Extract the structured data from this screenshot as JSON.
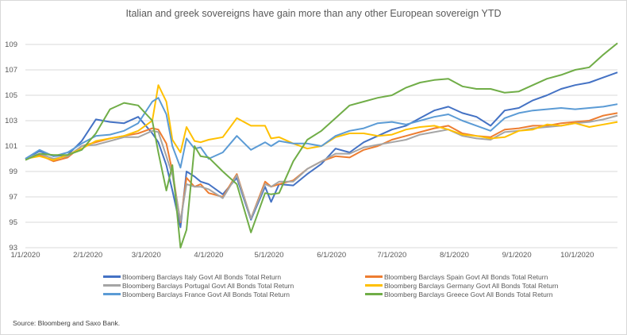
{
  "chart_data": {
    "type": "line",
    "title": "Italian and greek sovereigns have gain more than any other European sovereign YTD",
    "xlabel": "",
    "ylabel": "",
    "ylim": [
      93,
      109
    ],
    "yticks": [
      "93",
      "95",
      "97",
      "99",
      "101",
      "103",
      "105",
      "107",
      "109"
    ],
    "xticks": [
      "1/1/2020",
      "2/1/2020",
      "3/1/2020",
      "4/1/2020",
      "5/1/2020",
      "6/1/2020",
      "7/1/2020",
      "8/1/2020",
      "9/1/2020",
      "10/1/2020"
    ],
    "grid": true,
    "legend_position": "bottom",
    "x": [
      0,
      7,
      14,
      21,
      28,
      35,
      42,
      49,
      56,
      63,
      66,
      70,
      73,
      77,
      80,
      84,
      87,
      91,
      98,
      105,
      112,
      119,
      122,
      126,
      133,
      140,
      147,
      154,
      161,
      168,
      175,
      182,
      189,
      196,
      203,
      210,
      217,
      224,
      231,
      238,
      245,
      252,
      259,
      266,
      273,
      280,
      287,
      294
    ],
    "x_unit": "days since 1/1/2020",
    "series": [
      {
        "name": "Bloomberg Barclays Italy Govt All Bonds Total Return",
        "color": "#4472c4",
        "values": [
          100,
          100.6,
          100.2,
          100.3,
          101.4,
          103.1,
          102.9,
          102.8,
          103.3,
          102.0,
          101.3,
          99.5,
          97.5,
          94.6,
          99.0,
          98.6,
          98.2,
          98.0,
          97.2,
          98.5,
          95.2,
          97.8,
          96.6,
          98.0,
          97.9,
          98.8,
          99.6,
          100.8,
          100.5,
          101.3,
          101.8,
          102.3,
          102.6,
          103.2,
          103.8,
          104.1,
          103.6,
          103.3,
          102.6,
          103.8,
          104.0,
          104.6,
          105.0,
          105.5,
          105.8,
          106.0,
          106.4,
          106.8
        ]
      },
      {
        "name": "Bloomberg Barclays Spain Govt All Bonds Total Return",
        "color": "#ed7d31",
        "values": [
          100,
          100.3,
          99.8,
          100.1,
          101.0,
          101.3,
          101.6,
          101.8,
          102.0,
          102.4,
          102.3,
          101.2,
          99.0,
          95.0,
          98.5,
          97.8,
          98.0,
          97.3,
          97.0,
          98.8,
          95.3,
          98.2,
          97.8,
          98.0,
          98.3,
          99.2,
          99.8,
          100.2,
          100.1,
          100.7,
          101.0,
          101.5,
          101.8,
          102.1,
          102.4,
          102.6,
          102.0,
          101.8,
          101.7,
          102.3,
          102.4,
          102.6,
          102.6,
          102.8,
          102.9,
          103.0,
          103.4,
          103.6
        ]
      },
      {
        "name": "Bloomberg Barclays Portugal Govt All Bonds Total Return",
        "color": "#a5a5a5",
        "values": [
          100,
          100.4,
          100.0,
          100.2,
          101.0,
          101.1,
          101.4,
          101.7,
          101.7,
          102.2,
          102.1,
          100.2,
          98.7,
          95.1,
          98.0,
          97.8,
          97.8,
          97.6,
          96.9,
          98.7,
          95.3,
          98.0,
          97.8,
          98.2,
          98.2,
          99.2,
          99.8,
          100.4,
          100.4,
          100.9,
          101.1,
          101.3,
          101.5,
          101.9,
          102.1,
          102.3,
          101.8,
          101.6,
          101.5,
          102.1,
          102.2,
          102.4,
          102.5,
          102.6,
          102.8,
          102.9,
          103.1,
          103.4
        ]
      },
      {
        "name": "Bloomberg Barclays Germany Govt All Bonds Total Return",
        "color": "#ffc000",
        "values": [
          100,
          100.2,
          99.9,
          100.3,
          100.8,
          101.4,
          101.6,
          101.8,
          102.2,
          103.0,
          105.8,
          104.5,
          101.5,
          100.5,
          102.5,
          101.4,
          101.3,
          101.5,
          101.7,
          103.2,
          102.6,
          102.6,
          101.6,
          101.7,
          101.2,
          100.8,
          101.0,
          101.7,
          102.0,
          102.0,
          101.8,
          101.9,
          102.3,
          102.5,
          102.6,
          102.3,
          101.9,
          101.8,
          101.6,
          101.7,
          102.2,
          102.3,
          102.7,
          102.6,
          102.8,
          102.5,
          102.7,
          102.9
        ]
      },
      {
        "name": "Bloomberg Barclays France Govt All Bonds Total Return",
        "color": "#5b9bd5",
        "values": [
          100,
          100.7,
          100.2,
          100.5,
          101.2,
          101.8,
          101.9,
          102.2,
          102.8,
          104.5,
          104.8,
          103.5,
          101.0,
          99.3,
          101.6,
          100.8,
          100.9,
          100.0,
          100.5,
          101.8,
          100.7,
          101.3,
          101.0,
          101.4,
          101.2,
          101.2,
          101.0,
          101.8,
          102.2,
          102.4,
          102.8,
          102.9,
          102.7,
          103.0,
          103.3,
          103.5,
          103.0,
          102.6,
          102.2,
          103.2,
          103.6,
          103.8,
          103.9,
          104.0,
          103.9,
          104.0,
          104.1,
          104.3
        ]
      },
      {
        "name": "Bloomberg Barclays Greece Govt All Bonds Total Return",
        "color": "#70ad47",
        "values": [
          99.9,
          100.4,
          100.3,
          100.3,
          100.7,
          102.0,
          103.9,
          104.4,
          104.2,
          103.0,
          100.5,
          97.5,
          99.5,
          93.0,
          94.4,
          101.0,
          100.2,
          100.1,
          99.0,
          98.0,
          94.2,
          97.3,
          97.2,
          97.3,
          99.8,
          101.5,
          102.2,
          103.2,
          104.2,
          104.5,
          104.8,
          105.0,
          105.6,
          106.0,
          106.2,
          106.3,
          105.7,
          105.5,
          105.5,
          105.2,
          105.3,
          105.8,
          106.3,
          106.6,
          107.0,
          107.2,
          108.2,
          109.1
        ]
      }
    ]
  },
  "source": "Source: Bloomberg and Saxo Bank."
}
